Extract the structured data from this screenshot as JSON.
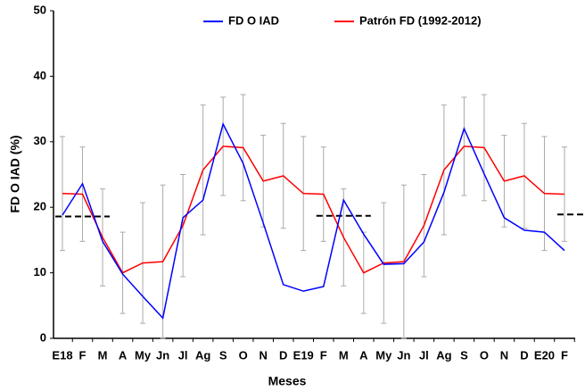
{
  "chart_data": {
    "type": "line",
    "ylabel": "FD O IAD (%)",
    "xlabel": "Meses",
    "categories": [
      "E18",
      "F",
      "M",
      "A",
      "My",
      "Jn",
      "Jl",
      "Ag",
      "S",
      "O",
      "N",
      "D",
      "E19",
      "F",
      "M",
      "A",
      "My",
      "Jn",
      "Jl",
      "Ag",
      "S",
      "O",
      "N",
      "D",
      "E20",
      "F"
    ],
    "series": [
      {
        "name": "FD O IAD",
        "color": "#0000ff",
        "values": [
          18.8,
          23.6,
          14.8,
          9.8,
          6.4,
          3.1,
          18.4,
          21.1,
          32.7,
          26.7,
          17.6,
          8.2,
          7.2,
          7.9,
          21.1,
          15.9,
          11.3,
          11.4,
          14.7,
          22.3,
          32.0,
          25.1,
          18.4,
          16.5,
          16.2,
          13.4
        ]
      },
      {
        "name": "Patrón FD (1992-2012)",
        "color": "#ff0000",
        "values": [
          22.1,
          22.0,
          15.4,
          10.0,
          11.5,
          11.7,
          17.2,
          25.7,
          29.3,
          29.1,
          24.0,
          24.8,
          22.1,
          22.0,
          15.4,
          10.0,
          11.5,
          11.7,
          17.2,
          25.7,
          29.3,
          29.1,
          24.0,
          24.8,
          22.1,
          22.0
        ],
        "errors": [
          8.7,
          7.2,
          7.4,
          6.2,
          9.2,
          11.7,
          7.8,
          9.9,
          7.5,
          8.1,
          7,
          8,
          8.7,
          7.2,
          7.4,
          6.2,
          9.2,
          11.7,
          7.8,
          9.9,
          7.5,
          8.1,
          7,
          8,
          8.7,
          7.2
        ],
        "error_color": "#aaaaaa"
      }
    ],
    "reference_segments": [
      {
        "from": 0,
        "to": 2,
        "value": 18.6
      },
      {
        "from": 13,
        "to": 15,
        "value": 18.7
      },
      {
        "from": 25,
        "to": 26,
        "value": 18.9
      }
    ],
    "reference_color": "#000000",
    "ylim": [
      0,
      50
    ],
    "yticks": [
      0,
      10,
      20,
      30,
      40,
      50
    ]
  }
}
